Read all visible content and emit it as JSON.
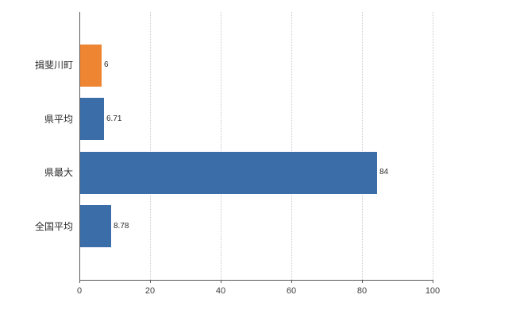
{
  "chart": {
    "background": "#ffffff",
    "colors": {
      "bar_default": "#3b6da8",
      "bar_highlight": "#ee8533",
      "grid": "#c9c9c9",
      "axis": "#5a5a5a",
      "text": "#2b2b2b"
    }
  },
  "chart_data": {
    "type": "bar",
    "orientation": "horizontal",
    "title": "",
    "xlabel": "",
    "ylabel": "",
    "legend": "none",
    "grid": "vertical-dotted",
    "categories": [
      "揖斐川町",
      "県平均",
      "県最大",
      "全国平均"
    ],
    "values": [
      6,
      6.71,
      84,
      8.78
    ],
    "value_labels": [
      "6",
      "6.71",
      "84",
      "8.78"
    ],
    "bar_colors": [
      "#ee8533",
      "#3b6da8",
      "#3b6da8",
      "#3b6da8"
    ],
    "xlim": [
      0,
      100
    ],
    "x_ticks": [
      0,
      20,
      40,
      60,
      80,
      100
    ]
  }
}
